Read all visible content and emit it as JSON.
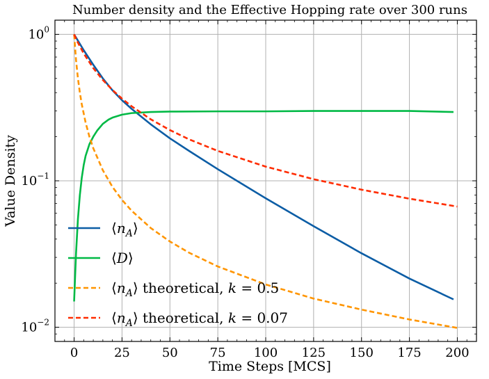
{
  "chart_data": {
    "type": "line",
    "title": "Number density and the Effective Hopping rate over 300 runs",
    "xlabel": "Time Steps [MCS]",
    "ylabel": "Value Density",
    "xlim": [
      -10,
      210
    ],
    "ylim": [
      0.008,
      1.25
    ],
    "yscale": "log",
    "grid": true,
    "legend_position": "lower-left",
    "x_ticks": [
      "0",
      "25",
      "50",
      "75",
      "100",
      "125",
      "150",
      "175",
      "200"
    ],
    "y_ticks": [
      {
        "base": "10",
        "exp": "0"
      },
      {
        "base": "10",
        "exp": "−1"
      },
      {
        "base": "10",
        "exp": "−2"
      }
    ],
    "series": [
      {
        "name": "⟨n_A⟩",
        "legend": {
          "open": "⟨",
          "var": "n",
          "sub": "A",
          "close": "⟩",
          "suffix": ""
        },
        "color": "#0C5DA5",
        "style": "solid",
        "x": [
          0,
          5,
          10,
          15,
          20,
          25,
          30,
          40,
          50,
          60,
          75,
          100,
          125,
          150,
          175,
          198
        ],
        "y": [
          1.0,
          0.78,
          0.62,
          0.5,
          0.415,
          0.355,
          0.31,
          0.243,
          0.195,
          0.16,
          0.12,
          0.076,
          0.049,
          0.032,
          0.0215,
          0.0155
        ]
      },
      {
        "name": "⟨D⟩",
        "legend": {
          "open": "⟨",
          "var": "D",
          "sub": "",
          "close": "⟩",
          "suffix": ""
        },
        "color": "#00B945",
        "style": "solid",
        "x": [
          0,
          1,
          2,
          3,
          4,
          5,
          6,
          8,
          10,
          12,
          15,
          18,
          20,
          25,
          30,
          40,
          50,
          75,
          100,
          125,
          150,
          175,
          198
        ],
        "y": [
          0.015,
          0.032,
          0.055,
          0.08,
          0.105,
          0.128,
          0.148,
          0.178,
          0.2,
          0.22,
          0.245,
          0.262,
          0.27,
          0.283,
          0.29,
          0.295,
          0.297,
          0.298,
          0.298,
          0.3,
          0.3,
          0.3,
          0.295
        ]
      },
      {
        "name": "⟨n_A⟩ theoretical, k = 0.5",
        "legend": {
          "open": "⟨",
          "var": "n",
          "sub": "A",
          "close": "⟩",
          "suffix": " theoretical, k = 0.5"
        },
        "color": "#FF9500",
        "style": "dashed",
        "x": [
          0,
          1,
          2,
          3,
          4,
          6,
          8,
          10,
          15,
          20,
          25,
          30,
          40,
          50,
          60,
          75,
          100,
          125,
          150,
          175,
          200
        ],
        "y": [
          1.0,
          0.667,
          0.5,
          0.4,
          0.333,
          0.25,
          0.2,
          0.167,
          0.118,
          0.0909,
          0.0741,
          0.0625,
          0.0476,
          0.0385,
          0.0323,
          0.026,
          0.0196,
          0.0157,
          0.0132,
          0.0113,
          0.0099
        ]
      },
      {
        "name": "⟨n_A⟩ theoretical, k = 0.07",
        "legend": {
          "open": "⟨",
          "var": "n",
          "sub": "A",
          "close": "⟩",
          "suffix": " theoretical, k = 0.07"
        },
        "color": "#FF2C00",
        "style": "dashed",
        "x": [
          0,
          2,
          5,
          10,
          15,
          20,
          25,
          30,
          40,
          50,
          60,
          75,
          100,
          125,
          150,
          175,
          200
        ],
        "y": [
          1.0,
          0.877,
          0.741,
          0.588,
          0.488,
          0.417,
          0.364,
          0.323,
          0.263,
          0.222,
          0.192,
          0.16,
          0.125,
          0.1026,
          0.087,
          0.0755,
          0.0667
        ]
      }
    ]
  }
}
